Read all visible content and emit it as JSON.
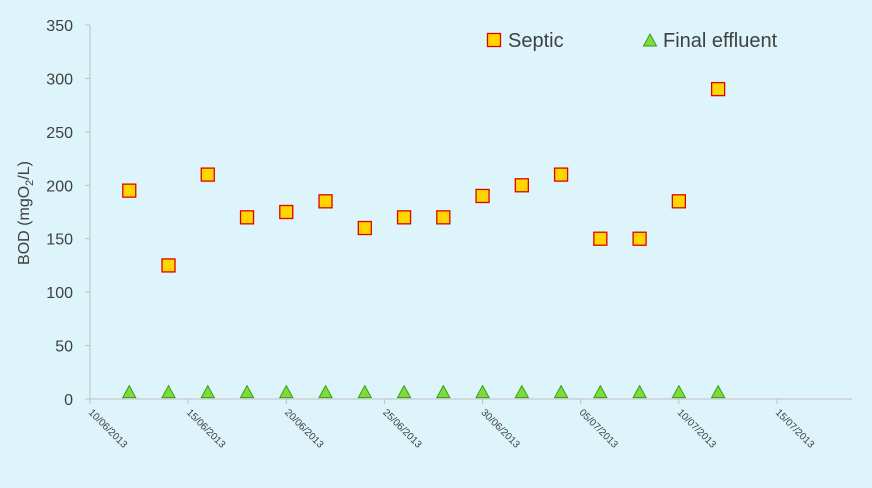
{
  "chart_data": {
    "type": "scatter",
    "ylabel": "BOD (mgO2/L)",
    "ylabel_parts": {
      "prefix": "BOD (mgO",
      "subscript": "2",
      "suffix": "/L)"
    },
    "ylim": [
      0,
      350
    ],
    "yticks": [
      0,
      50,
      100,
      150,
      200,
      250,
      300,
      350
    ],
    "xlim": [
      "10/06/2013",
      "15/07/2013"
    ],
    "xticks": [
      "10/06/2013",
      "15/06/2013",
      "20/06/2013",
      "25/06/2013",
      "30/06/2013",
      "05/07/2013",
      "10/07/2013",
      "15/07/2013"
    ],
    "grid": false,
    "legend_position": "top-right",
    "colors": {
      "background": "#ddf4fb",
      "axis": "#bfbfbf",
      "text": "#404040",
      "septic_fill": "#ffd700",
      "septic_stroke": "#e00000",
      "final_fill": "#7ddc3c",
      "final_stroke": "#3a9d1a"
    },
    "series": [
      {
        "name": "Septic",
        "marker": "square",
        "x": [
          "12/06/2013",
          "14/06/2013",
          "16/06/2013",
          "18/06/2013",
          "20/06/2013",
          "22/06/2013",
          "24/06/2013",
          "26/06/2013",
          "28/06/2013",
          "30/06/2013",
          "02/07/2013",
          "04/07/2013",
          "06/07/2013",
          "08/07/2013",
          "10/07/2013",
          "12/07/2013"
        ],
        "values": [
          195,
          125,
          210,
          170,
          175,
          185,
          160,
          170,
          170,
          190,
          200,
          210,
          150,
          150,
          185,
          290
        ]
      },
      {
        "name": "Final effluent",
        "marker": "triangle",
        "x": [
          "12/06/2013",
          "14/06/2013",
          "16/06/2013",
          "18/06/2013",
          "20/06/2013",
          "22/06/2013",
          "24/06/2013",
          "26/06/2013",
          "28/06/2013",
          "30/06/2013",
          "02/07/2013",
          "04/07/2013",
          "06/07/2013",
          "08/07/2013",
          "10/07/2013",
          "12/07/2013"
        ],
        "values": [
          5,
          5,
          5,
          5,
          5,
          5,
          5,
          5,
          5,
          5,
          5,
          5,
          5,
          5,
          5,
          5
        ]
      }
    ]
  }
}
